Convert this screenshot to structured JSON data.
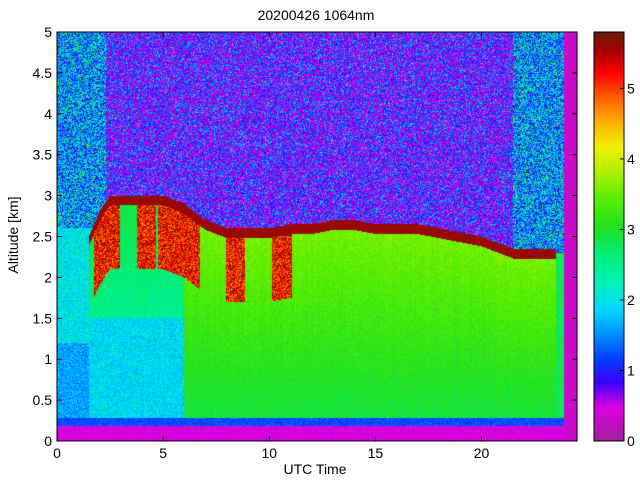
{
  "chart_data": {
    "type": "heatmap",
    "title": "20200426 1064nm",
    "xlabel": "UTC Time",
    "ylabel": "Altitude [km]",
    "xlim": [
      0,
      24.5
    ],
    "ylim": [
      0,
      5
    ],
    "x_ticks": [
      0,
      5,
      10,
      15,
      20
    ],
    "y_ticks": [
      0,
      0.5,
      1,
      1.5,
      2,
      2.5,
      3,
      3.5,
      4,
      4.5,
      5
    ],
    "y_tick_labels": [
      "0",
      "0.5",
      "1",
      "1.5",
      "2",
      "2.5",
      "3",
      "3.5",
      "4",
      "4.5",
      "5"
    ],
    "colorbar": {
      "range": [
        0,
        5.8
      ],
      "ticks": [
        0,
        1,
        2,
        3,
        4,
        5
      ],
      "colors": [
        [
          0.0,
          "#a020a0"
        ],
        [
          0.08,
          "#e000e0"
        ],
        [
          0.14,
          "#4000ff"
        ],
        [
          0.2,
          "#0040ff"
        ],
        [
          0.26,
          "#0090ff"
        ],
        [
          0.32,
          "#00d8ff"
        ],
        [
          0.38,
          "#00f0c0"
        ],
        [
          0.45,
          "#00f080"
        ],
        [
          0.52,
          "#20e020"
        ],
        [
          0.6,
          "#60f000"
        ],
        [
          0.66,
          "#b0f000"
        ],
        [
          0.72,
          "#f0f000"
        ],
        [
          0.78,
          "#ffb000"
        ],
        [
          0.84,
          "#ff6000"
        ],
        [
          0.9,
          "#ff0000"
        ],
        [
          0.95,
          "#b00000"
        ],
        [
          1.0,
          "#6a1a0a"
        ]
      ]
    },
    "layer_top_km": [
      [
        1.5,
        2.5
      ],
      [
        2.0,
        2.8
      ],
      [
        2.5,
        3.0
      ],
      [
        3.0,
        3.0
      ],
      [
        4.0,
        3.0
      ],
      [
        5.0,
        3.0
      ],
      [
        6.0,
        2.9
      ],
      [
        7.0,
        2.7
      ],
      [
        8.0,
        2.6
      ],
      [
        9.0,
        2.6
      ],
      [
        10.0,
        2.6
      ],
      [
        11.0,
        2.65
      ],
      [
        12.0,
        2.65
      ],
      [
        13.0,
        2.7
      ],
      [
        14.0,
        2.7
      ],
      [
        15.0,
        2.65
      ],
      [
        16.0,
        2.65
      ],
      [
        17.0,
        2.65
      ],
      [
        18.0,
        2.6
      ],
      [
        19.0,
        2.55
      ],
      [
        20.0,
        2.5
      ],
      [
        21.0,
        2.4
      ],
      [
        21.5,
        2.35
      ],
      [
        23.5,
        2.35
      ]
    ]
  }
}
